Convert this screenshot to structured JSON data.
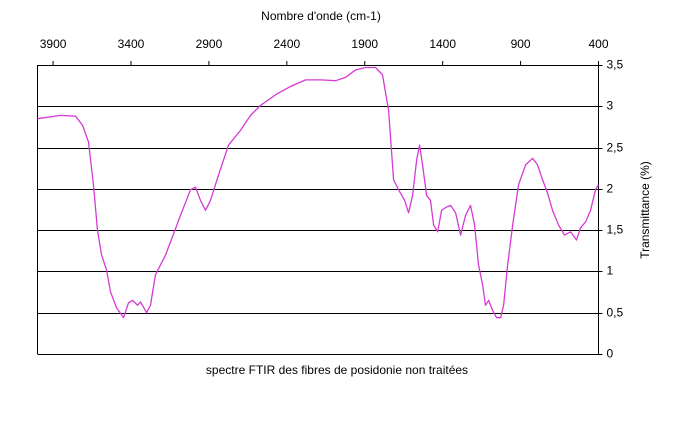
{
  "chart_data": {
    "type": "line",
    "title": "spectre FTIR des fibres de posidonie non traitées",
    "x_label": "Nombre d'onde (cm-1)",
    "y_label": "Transmittance (%)",
    "xlim": [
      4000,
      400
    ],
    "xticks": [
      3900,
      3400,
      2900,
      2400,
      1900,
      1400,
      900,
      400
    ],
    "ylim": [
      0,
      3.5
    ],
    "yticks": [
      0,
      {
        "value": 0.5,
        "label": "0,5"
      },
      1,
      {
        "value": 1.5,
        "label": "1,5"
      },
      2,
      {
        "value": 2.5,
        "label": "2,5"
      },
      3,
      {
        "value": 3.5,
        "label": "3,5"
      }
    ],
    "grid": true,
    "x": [
      4000,
      3852,
      3756,
      3711,
      3673,
      3641,
      3615,
      3589,
      3557,
      3531,
      3493,
      3448,
      3416,
      3390,
      3358,
      3339,
      3300,
      3275,
      3243,
      3178,
      3082,
      3018,
      2986,
      2954,
      2922,
      2890,
      2838,
      2774,
      2697,
      2633,
      2569,
      2472,
      2376,
      2280,
      2184,
      2087,
      2023,
      1959,
      1895,
      1831,
      1786,
      1747,
      1715,
      1683,
      1644,
      1619,
      1593,
      1567,
      1548,
      1529,
      1503,
      1478,
      1458,
      1432,
      1407,
      1375,
      1349,
      1317,
      1285,
      1253,
      1221,
      1195,
      1170,
      1144,
      1125,
      1105,
      1080,
      1054,
      1028,
      1009,
      983,
      951,
      913,
      868,
      823,
      791,
      759,
      727,
      695,
      656,
      618,
      579,
      541,
      515,
      483,
      451,
      419,
      400
    ],
    "series": [
      {
        "color": "#d63ad6",
        "values": [
          2.85,
          2.89,
          2.88,
          2.77,
          2.57,
          2.05,
          1.5,
          1.2,
          1.02,
          0.75,
          0.56,
          0.44,
          0.62,
          0.65,
          0.59,
          0.63,
          0.5,
          0.59,
          0.96,
          1.2,
          1.68,
          1.99,
          2.02,
          1.86,
          1.74,
          1.86,
          2.17,
          2.53,
          2.71,
          2.89,
          3.01,
          3.14,
          3.24,
          3.32,
          3.32,
          3.31,
          3.35,
          3.44,
          3.47,
          3.47,
          3.38,
          2.95,
          2.11,
          1.99,
          1.86,
          1.71,
          1.92,
          2.35,
          2.53,
          2.29,
          1.92,
          1.86,
          1.56,
          1.48,
          1.74,
          1.78,
          1.8,
          1.71,
          1.44,
          1.68,
          1.8,
          1.56,
          1.08,
          0.84,
          0.59,
          0.65,
          0.53,
          0.44,
          0.44,
          0.59,
          1.08,
          1.56,
          2.05,
          2.29,
          2.37,
          2.29,
          2.11,
          1.95,
          1.74,
          1.56,
          1.44,
          1.48,
          1.38,
          1.53,
          1.6,
          1.74,
          1.99,
          2.05
        ]
      }
    ]
  }
}
